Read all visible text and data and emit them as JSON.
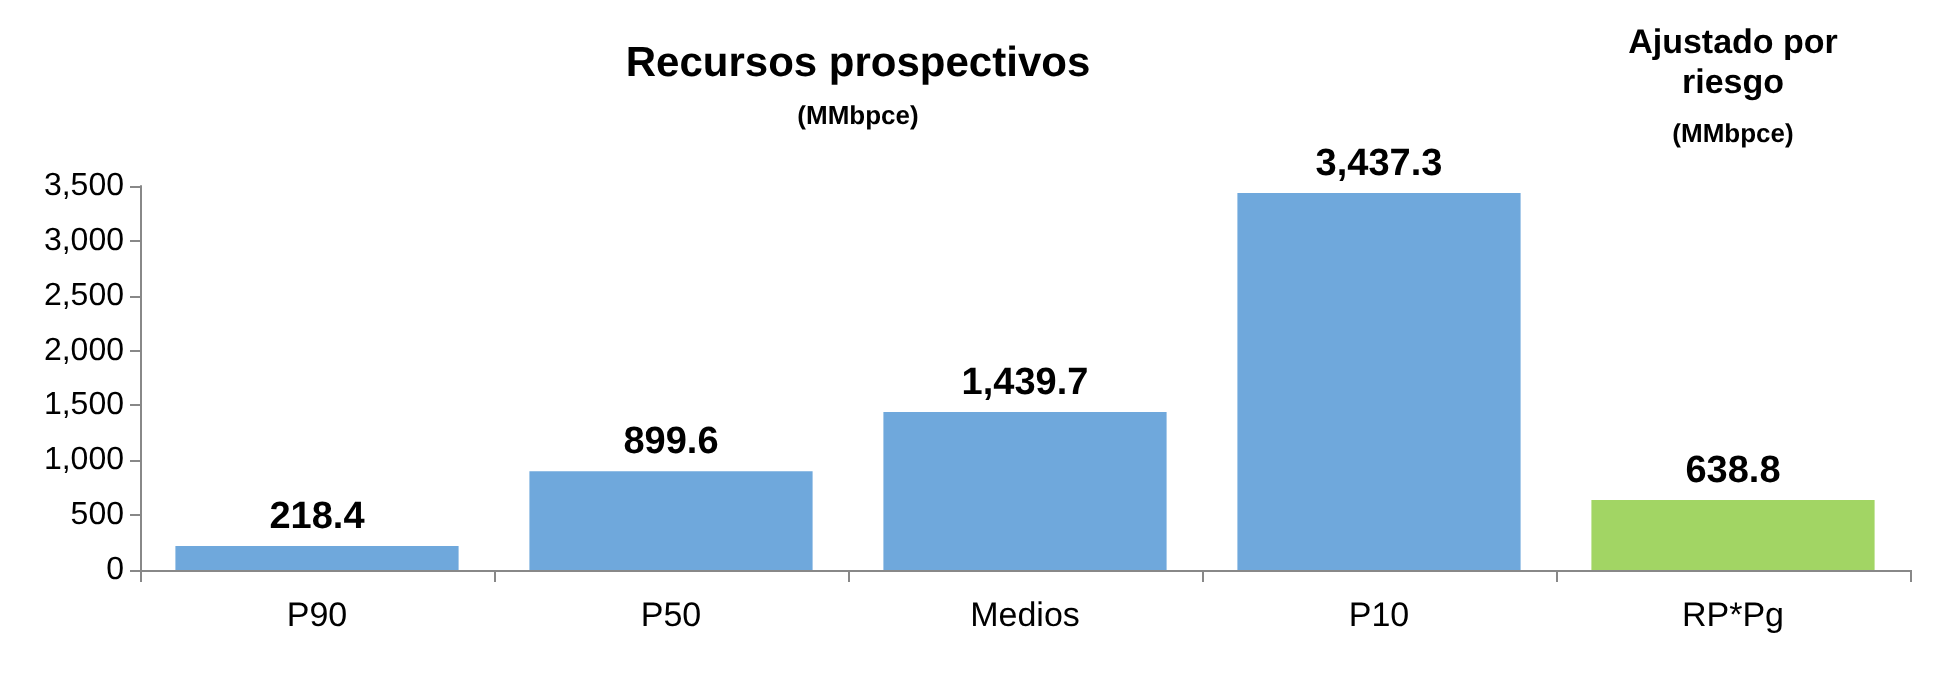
{
  "chart_data": {
    "type": "bar",
    "title": "Recursos prospectivos",
    "subtitle": "(MMbpce)",
    "annotations": [
      "Ajustado por\nriesgo",
      "(MMbpce)"
    ],
    "categories": [
      "P90",
      "P50",
      "Medios",
      "P10",
      "RP*Pg"
    ],
    "values": [
      218.4,
      899.6,
      1439.7,
      3437.3,
      638.8
    ],
    "value_labels": [
      "218.4",
      "899.6",
      "1,439.7",
      "3,437.3",
      "638.8"
    ],
    "colors": [
      "#6fa8dc",
      "#6fa8dc",
      "#6fa8dc",
      "#6fa8dc",
      "#a2d564"
    ],
    "ylim": [
      0,
      3500
    ],
    "yticks": [
      0,
      500,
      {
        "value": 1000,
        "label": "1,000"
      },
      {
        "value": 1500,
        "label": "1,500"
      },
      {
        "value": 2000,
        "label": "2,000"
      },
      {
        "value": 2500,
        "label": "2,500"
      },
      {
        "value": 3000,
        "label": "3,000"
      },
      {
        "value": 3500,
        "label": "3,500"
      }
    ],
    "grid": false
  }
}
